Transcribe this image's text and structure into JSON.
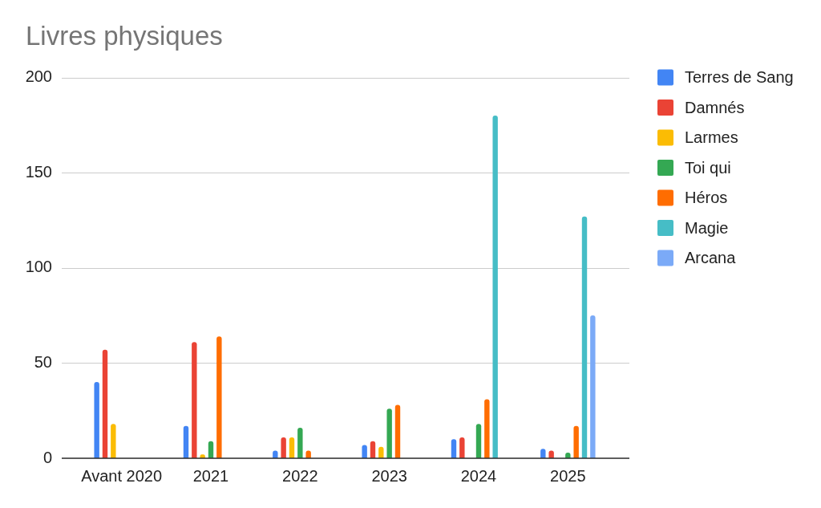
{
  "chart_data": {
    "type": "bar",
    "title": "Livres physiques",
    "categories": [
      "Avant 2020",
      "2021",
      "2022",
      "2023",
      "2024",
      "2025"
    ],
    "series": [
      {
        "name": "Terres de Sang",
        "color": "#4285f4",
        "values": [
          40,
          17,
          4,
          7,
          10,
          5
        ]
      },
      {
        "name": "Damnés",
        "color": "#ea4335",
        "values": [
          57,
          61,
          11,
          9,
          11,
          4
        ]
      },
      {
        "name": "Larmes",
        "color": "#fbbc04",
        "values": [
          18,
          2,
          11,
          6,
          null,
          null
        ]
      },
      {
        "name": "Toi qui",
        "color": "#34a853",
        "values": [
          null,
          9,
          16,
          26,
          18,
          3
        ]
      },
      {
        "name": "Héros",
        "color": "#ff6d01",
        "values": [
          null,
          64,
          4,
          28,
          31,
          17
        ]
      },
      {
        "name": "Magie",
        "color": "#46bdc6",
        "values": [
          null,
          null,
          null,
          null,
          180,
          127
        ]
      },
      {
        "name": "Arcana",
        "color": "#7baaf7",
        "values": [
          null,
          null,
          null,
          null,
          null,
          75
        ]
      }
    ],
    "ylim": [
      0,
      200
    ],
    "yticks": [
      0,
      50,
      100,
      150,
      200
    ],
    "grid": "y",
    "legend": "right"
  }
}
